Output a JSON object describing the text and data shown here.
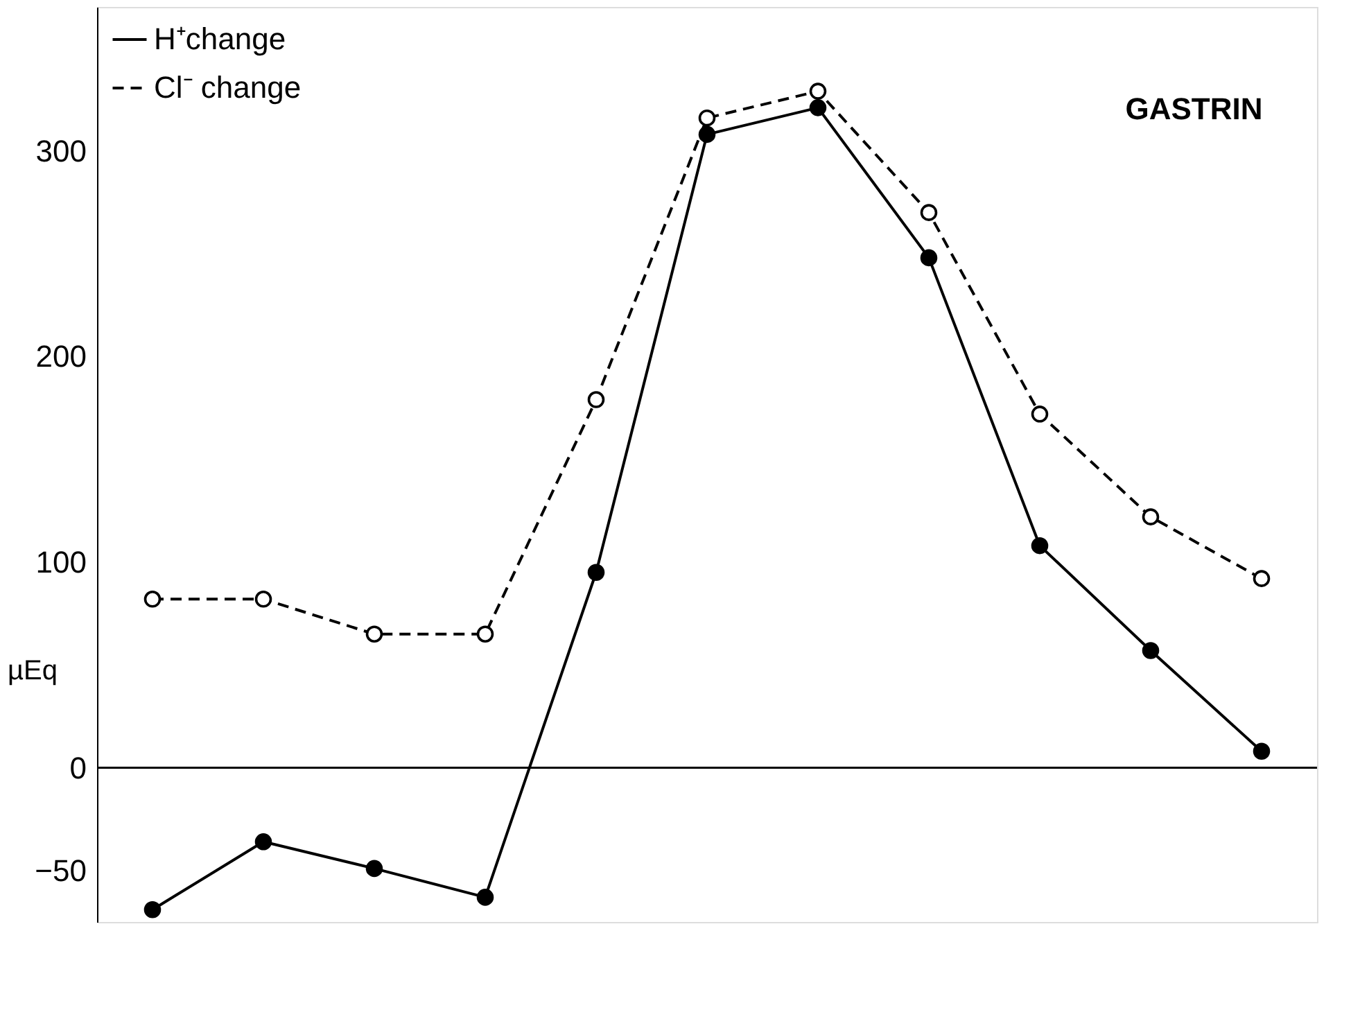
{
  "chart_data": {
    "type": "line",
    "title": "GASTRIN",
    "ylabel": "µEq",
    "categories": [
      null,
      null,
      null,
      null,
      null,
      null,
      null,
      null,
      null,
      null,
      null
    ],
    "series": [
      {
        "name": "H⁺change",
        "color": "#000000",
        "line_style": "solid",
        "values": [
          -69,
          -36,
          -49,
          -63,
          95,
          308,
          321,
          248,
          108,
          57,
          8
        ]
      },
      {
        "name": "Cl⁻ change",
        "color": "#000000",
        "line_style": "dashed",
        "values": [
          82,
          82,
          65,
          65,
          179,
          316,
          329,
          270,
          172,
          122,
          92
        ]
      }
    ],
    "ylim": [
      -75,
      370
    ],
    "yticks": [
      -50,
      0,
      100,
      200,
      300
    ],
    "ref_lines": [
      {
        "axis": "y",
        "value": 0
      }
    ],
    "marker": "circle",
    "legend": "top left",
    "grid": false,
    "tick_labels": "y"
  }
}
